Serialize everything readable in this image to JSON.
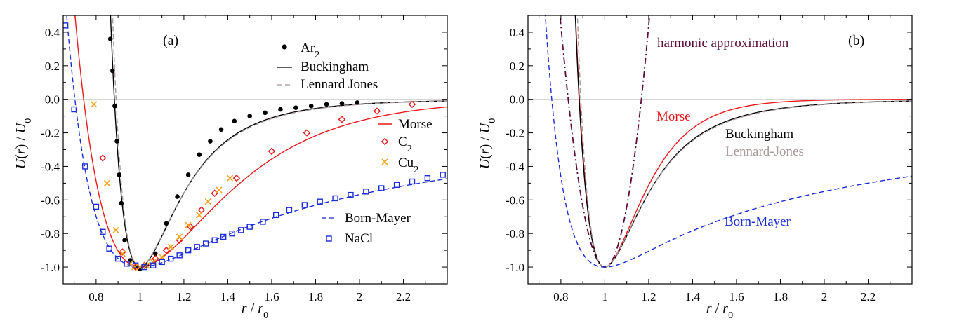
{
  "colors": {
    "black": "#000000",
    "red": "#e8191d",
    "blue": "#1a2cd6",
    "orange": "#f5a11a",
    "grayLJ": "#a89898",
    "purple": "#5c0a3a",
    "zero": "#c8c8c8"
  },
  "chart_data": [
    {
      "type": "line",
      "panel_label": "(a)",
      "xlabel": "r / r0",
      "ylabel": "U(r) / U0",
      "xlim": [
        0.65,
        2.4
      ],
      "ylim": [
        -1.1,
        0.5
      ],
      "xticks": [
        "0.8",
        "1",
        "1.2",
        "1.4",
        "1.6",
        "1.8",
        "2",
        "2.2"
      ],
      "yticks": [
        "0.4",
        "0.2",
        "0.0",
        "-0.2",
        "-0.4",
        "-0.6",
        "-0.8",
        "-1.0"
      ],
      "legend": {
        "ar2": "Ar2",
        "buckingham": "Buckingham",
        "lennard_jones": "Lennard Jones",
        "morse": "Morse",
        "c2": "C2",
        "cu2": "Cu2",
        "born_mayer": "Born-Mayer",
        "nacl": "NaCl"
      },
      "series": [
        {
          "name": "Ar2",
          "kind": "scatter",
          "marker": "filled-circle",
          "x": [
            0.865,
            0.875,
            0.885,
            0.895,
            0.905,
            0.915,
            0.93,
            0.955,
            0.98,
            1.0,
            1.03,
            1.07,
            1.12,
            1.17,
            1.22,
            1.27,
            1.32,
            1.37,
            1.43,
            1.5,
            1.57,
            1.64,
            1.71,
            1.78,
            1.85,
            1.92,
            1.99
          ],
          "y": [
            0.36,
            0.17,
            -0.04,
            -0.25,
            -0.45,
            -0.62,
            -0.84,
            -0.96,
            -1.0,
            -1.01,
            -0.99,
            -0.92,
            -0.74,
            -0.58,
            -0.45,
            -0.33,
            -0.25,
            -0.18,
            -0.13,
            -0.1,
            -0.08,
            -0.06,
            -0.05,
            -0.04,
            -0.03,
            -0.025,
            -0.02
          ]
        },
        {
          "name": "C2",
          "kind": "scatter",
          "marker": "open-diamond",
          "x": [
            0.83,
            0.92,
            0.98,
            1.02,
            1.07,
            1.12,
            1.18,
            1.23,
            1.28,
            1.34,
            1.44,
            1.6,
            1.76,
            1.92,
            2.08,
            2.24
          ],
          "y": [
            -0.35,
            -0.91,
            -1.0,
            -0.99,
            -0.95,
            -0.9,
            -0.84,
            -0.76,
            -0.66,
            -0.56,
            -0.47,
            -0.31,
            -0.2,
            -0.12,
            -0.07,
            -0.03
          ],
          "clip": true
        },
        {
          "name": "Cu2",
          "kind": "scatter",
          "marker": "x",
          "x": [
            0.79,
            0.85,
            0.89,
            0.92,
            0.955,
            0.975,
            1.0,
            1.03,
            1.06,
            1.1,
            1.14,
            1.18,
            1.22,
            1.27,
            1.31,
            1.36,
            1.41
          ],
          "y": [
            -0.03,
            -0.5,
            -0.78,
            -0.92,
            -0.98,
            -1.0,
            -1.0,
            -0.99,
            -0.97,
            -0.94,
            -0.88,
            -0.82,
            -0.75,
            -0.69,
            -0.61,
            -0.54,
            -0.47
          ]
        },
        {
          "name": "NaCl",
          "kind": "scatter",
          "marker": "open-square",
          "x": [
            0.66,
            0.7,
            0.75,
            0.8,
            0.83,
            0.86,
            0.9,
            0.94,
            0.98,
            1.02,
            1.06,
            1.1,
            1.14,
            1.18,
            1.22,
            1.26,
            1.3,
            1.34,
            1.38,
            1.42,
            1.46,
            1.5,
            1.56,
            1.62,
            1.68,
            1.75,
            1.82,
            1.89,
            1.96,
            2.03,
            2.1,
            2.17,
            2.24,
            2.31,
            2.38
          ],
          "y": [
            0.44,
            -0.06,
            -0.4,
            -0.64,
            -0.79,
            -0.89,
            -0.95,
            -0.98,
            -0.99,
            -1.0,
            -0.99,
            -0.97,
            -0.95,
            -0.93,
            -0.9,
            -0.88,
            -0.86,
            -0.84,
            -0.82,
            -0.8,
            -0.78,
            -0.76,
            -0.73,
            -0.69,
            -0.66,
            -0.63,
            -0.61,
            -0.59,
            -0.57,
            -0.55,
            -0.53,
            -0.51,
            -0.49,
            -0.47,
            -0.45
          ]
        }
      ],
      "curves": [
        {
          "name": "Buckingham",
          "style": "solid",
          "color": "black",
          "model": "buckingham",
          "a": 13.0
        },
        {
          "name": "Lennard Jones",
          "style": "dashed",
          "color": "grayLJ",
          "model": "lj"
        },
        {
          "name": "Morse",
          "style": "solid",
          "color": "red",
          "model": "morse",
          "a": 2.7
        },
        {
          "name": "Born-Mayer",
          "style": "dashed",
          "color": "blue",
          "model": "bornmayer",
          "a": 1.0
        }
      ]
    },
    {
      "type": "line",
      "panel_label": "(b)",
      "xlabel": "r / r0",
      "ylabel": "U(r) / U0",
      "xlim": [
        0.65,
        2.4
      ],
      "ylim": [
        -1.1,
        0.5
      ],
      "xticks": [
        "0.8",
        "1",
        "1.2",
        "1.4",
        "1.6",
        "1.8",
        "2",
        "2.2"
      ],
      "yticks": [
        "0.4",
        "0.2",
        "0.0",
        "-0.2",
        "-0.4",
        "-0.6",
        "-0.8",
        "-1.0"
      ],
      "labels": {
        "harmonic": "harmonic approximation",
        "morse": "Morse",
        "buckingham": "Buckingham",
        "lennard_jones": "Lennard-Jones",
        "born_mayer": "Born-Mayer"
      },
      "curves": [
        {
          "name": "harmonic approximation",
          "style": "dashdot",
          "color": "purple",
          "model": "harmonic",
          "k": 36.0
        },
        {
          "name": "Morse",
          "style": "solid",
          "color": "red",
          "model": "morse",
          "a": 6.0
        },
        {
          "name": "Buckingham",
          "style": "solid",
          "color": "black",
          "model": "buckingham",
          "a": 13.0
        },
        {
          "name": "Lennard-Jones",
          "style": "dashed",
          "color": "grayLJ",
          "model": "lj"
        },
        {
          "name": "Born-Mayer",
          "style": "dashed",
          "color": "blue",
          "model": "bornmayer2",
          "a": 2.0
        }
      ]
    }
  ]
}
